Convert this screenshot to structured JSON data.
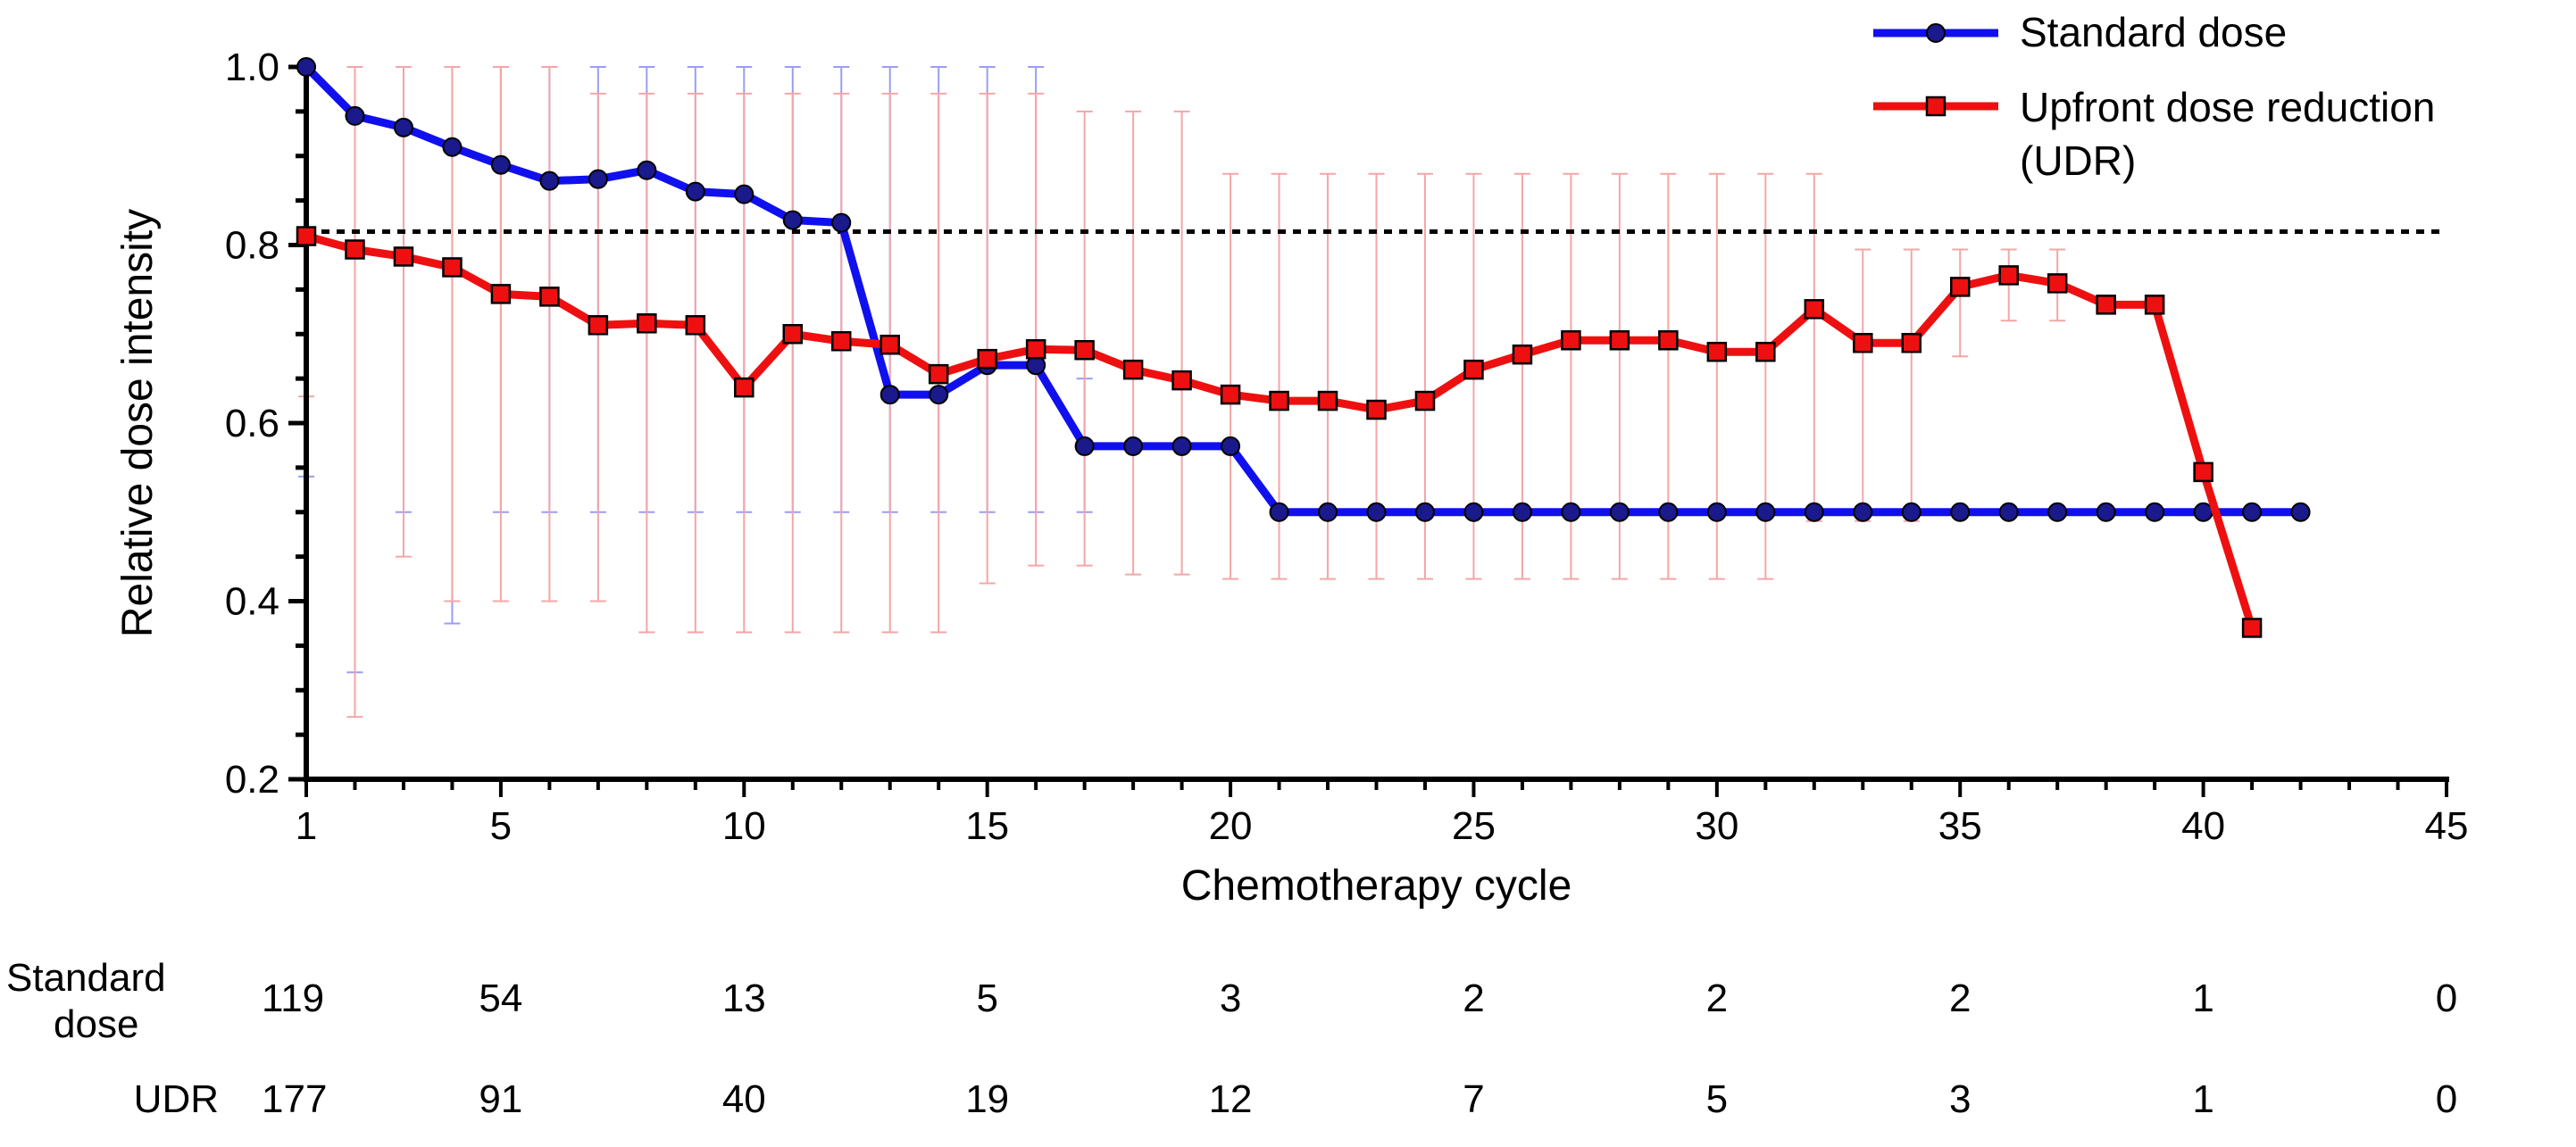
{
  "chart_data": {
    "type": "line",
    "xlabel": "Chemotherapy cycle",
    "ylabel": "Relative dose intensity",
    "xlim": [
      1,
      45
    ],
    "ylim": [
      0.2,
      1.0
    ],
    "xticks": [
      1,
      5,
      10,
      15,
      20,
      25,
      30,
      35,
      40,
      45
    ],
    "yticks": [
      0.2,
      0.4,
      0.6,
      0.8,
      1.0
    ],
    "ytick_labels": [
      "0.2",
      "0.4",
      "0.6",
      "0.8",
      "1.0"
    ],
    "reference_line": {
      "y": 0.815,
      "style": "dotted"
    },
    "legend": {
      "placement": "top-right"
    },
    "series": [
      {
        "name": "Standard dose",
        "color": "#1010ee",
        "errorbar_color": "#9c9cf4",
        "marker": "circle",
        "x": [
          1,
          2,
          3,
          4,
          5,
          6,
          7,
          8,
          9,
          10,
          11,
          12,
          13,
          14,
          15,
          16,
          17,
          18,
          19,
          20,
          21,
          22,
          23,
          24,
          25,
          26,
          27,
          28,
          29,
          30,
          31,
          32,
          33,
          34,
          35,
          36,
          37,
          38,
          39,
          40,
          41,
          42
        ],
        "values": [
          1.0,
          0.945,
          0.932,
          0.91,
          0.89,
          0.872,
          0.874,
          0.884,
          0.86,
          0.857,
          0.828,
          0.825,
          0.632,
          0.632,
          0.665,
          0.665,
          0.574,
          0.574,
          0.574,
          0.574,
          0.5,
          0.5,
          0.5,
          0.5,
          0.5,
          0.5,
          0.5,
          0.5,
          0.5,
          0.5,
          0.5,
          0.5,
          0.5,
          0.5,
          0.5,
          0.5,
          0.5,
          0.5,
          0.5,
          0.5,
          0.5,
          0.5
        ],
        "error_low": [
          0.54,
          0.32,
          0.5,
          0.375,
          0.5,
          0.5,
          0.5,
          0.5,
          0.5,
          0.5,
          0.5,
          0.5,
          0.5,
          0.5,
          0.5,
          0.5,
          0.5,
          null,
          null,
          null,
          null,
          null,
          null,
          null,
          null,
          null,
          null,
          null,
          null,
          null,
          null,
          null,
          null,
          null,
          null,
          null,
          null,
          null,
          null,
          null,
          null,
          null
        ],
        "error_high": [
          1.0,
          1.0,
          1.0,
          1.0,
          1.0,
          1.0,
          1.0,
          1.0,
          1.0,
          1.0,
          1.0,
          1.0,
          1.0,
          1.0,
          1.0,
          1.0,
          0.65,
          null,
          null,
          null,
          null,
          null,
          null,
          null,
          null,
          null,
          null,
          null,
          null,
          null,
          null,
          null,
          null,
          null,
          null,
          null,
          null,
          null,
          null,
          null,
          null,
          null
        ]
      },
      {
        "name": "Upfront dose reduction (UDR)",
        "legend_lines": [
          "Upfront dose reduction",
          "(UDR)"
        ],
        "color": "#ee1010",
        "errorbar_color": "#f4a6a6",
        "marker": "square",
        "x": [
          1,
          2,
          3,
          4,
          5,
          6,
          7,
          8,
          9,
          10,
          11,
          12,
          13,
          14,
          15,
          16,
          17,
          18,
          19,
          20,
          21,
          22,
          23,
          24,
          25,
          26,
          27,
          28,
          29,
          30,
          31,
          32,
          33,
          34,
          35,
          36,
          37,
          38,
          39,
          40,
          41
        ],
        "values": [
          0.81,
          0.795,
          0.787,
          0.775,
          0.745,
          0.742,
          0.71,
          0.712,
          0.71,
          0.64,
          0.7,
          0.692,
          0.688,
          0.655,
          0.672,
          0.683,
          0.682,
          0.66,
          0.648,
          0.632,
          0.625,
          0.625,
          0.615,
          0.625,
          0.66,
          0.677,
          0.693,
          0.693,
          0.693,
          0.68,
          0.68,
          0.728,
          0.69,
          0.69,
          0.753,
          0.766,
          0.757,
          0.733,
          0.733,
          0.545,
          0.37
        ],
        "error_low": [
          0.63,
          0.27,
          0.45,
          0.4,
          0.4,
          0.4,
          0.4,
          0.365,
          0.365,
          0.365,
          0.365,
          0.365,
          0.365,
          0.365,
          0.42,
          0.44,
          0.44,
          0.43,
          0.43,
          0.425,
          0.425,
          0.425,
          0.425,
          0.425,
          0.425,
          0.425,
          0.425,
          0.425,
          0.425,
          0.425,
          0.425,
          0.49,
          0.49,
          0.49,
          0.675,
          0.715,
          0.715,
          null,
          null,
          null,
          null
        ],
        "error_high": [
          1.0,
          1.0,
          1.0,
          1.0,
          1.0,
          1.0,
          0.97,
          0.97,
          0.97,
          0.97,
          0.97,
          0.97,
          0.97,
          0.97,
          0.97,
          0.97,
          0.95,
          0.95,
          0.95,
          0.88,
          0.88,
          0.88,
          0.88,
          0.88,
          0.88,
          0.88,
          0.88,
          0.88,
          0.88,
          0.88,
          0.88,
          0.88,
          0.795,
          0.795,
          0.795,
          0.795,
          0.795,
          null,
          null,
          null,
          null
        ]
      }
    ],
    "risk_table": {
      "columns": [
        1,
        5,
        10,
        15,
        20,
        25,
        30,
        35,
        40,
        45
      ],
      "rows": [
        {
          "label_lines": [
            "Standard",
            "dose"
          ],
          "values": [
            "119",
            "54",
            "13",
            "5",
            "3",
            "2",
            "2",
            "2",
            "1",
            "0"
          ]
        },
        {
          "label_lines": [
            "UDR"
          ],
          "values": [
            "177",
            "91",
            "40",
            "19",
            "12",
            "7",
            "5",
            "3",
            "1",
            "0"
          ]
        }
      ]
    }
  }
}
